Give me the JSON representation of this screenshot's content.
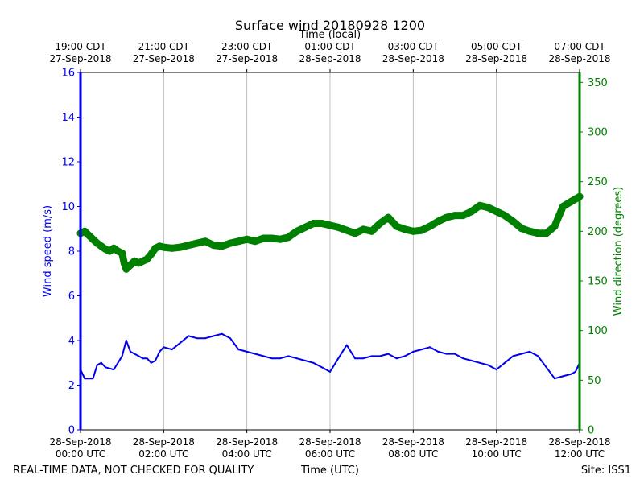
{
  "chart_data": {
    "type": "line",
    "title": "Surface wind 20180928 1200",
    "top_xlabel": "Time (local)",
    "xlabel": "Time (UTC)",
    "ylabel_left": "Wind speed (m/s)",
    "ylabel_right": "Wind direction (degrees)",
    "footer_left": "REAL-TIME DATA, NOT CHECKED FOR QUALITY",
    "footer_right": "Site: ISS1",
    "x_unit": "hours since 28-Sep-2018 00:00 UTC",
    "xlim": [
      0,
      12
    ],
    "ylim_left": [
      0,
      16
    ],
    "ylim_right": [
      0,
      360
    ],
    "grid": "vertical at bottom ticks",
    "colors": {
      "speed": "#0000ee",
      "direction": "#008000",
      "grid": "#b0b0b0",
      "axis": "#000000"
    },
    "bottom_ticks": [
      {
        "x": 0,
        "line1": "28-Sep-2018",
        "line2": "00:00 UTC"
      },
      {
        "x": 2,
        "line1": "28-Sep-2018",
        "line2": "02:00 UTC"
      },
      {
        "x": 4,
        "line1": "28-Sep-2018",
        "line2": "04:00 UTC"
      },
      {
        "x": 6,
        "line1": "28-Sep-2018",
        "line2": "06:00 UTC"
      },
      {
        "x": 8,
        "line1": "28-Sep-2018",
        "line2": "08:00 UTC"
      },
      {
        "x": 10,
        "line1": "28-Sep-2018",
        "line2": "10:00 UTC"
      },
      {
        "x": 12,
        "line1": "28-Sep-2018",
        "line2": "12:00 UTC"
      }
    ],
    "top_ticks": [
      {
        "x": 0,
        "line1": "19:00 CDT",
        "line2": "27-Sep-2018"
      },
      {
        "x": 2,
        "line1": "21:00 CDT",
        "line2": "27-Sep-2018"
      },
      {
        "x": 4,
        "line1": "23:00 CDT",
        "line2": "27-Sep-2018"
      },
      {
        "x": 6,
        "line1": "01:00 CDT",
        "line2": "28-Sep-2018"
      },
      {
        "x": 8,
        "line1": "03:00 CDT",
        "line2": "28-Sep-2018"
      },
      {
        "x": 10,
        "line1": "05:00 CDT",
        "line2": "28-Sep-2018"
      },
      {
        "x": 12,
        "line1": "07:00 CDT",
        "line2": "28-Sep-2018"
      }
    ],
    "left_ticks": [
      0,
      2,
      4,
      6,
      8,
      10,
      12,
      14,
      16
    ],
    "right_ticks": [
      0,
      50,
      100,
      150,
      200,
      250,
      300,
      350
    ],
    "series": [
      {
        "name": "Wind speed",
        "axis": "left",
        "style": "thin line",
        "x": [
          0,
          0.1,
          0.2,
          0.3,
          0.4,
          0.5,
          0.6,
          0.8,
          0.9,
          1.0,
          1.1,
          1.2,
          1.3,
          1.4,
          1.5,
          1.6,
          1.7,
          1.8,
          1.9,
          2.0,
          2.2,
          2.4,
          2.6,
          2.8,
          3.0,
          3.2,
          3.4,
          3.6,
          3.8,
          4.0,
          4.2,
          4.4,
          4.6,
          4.8,
          5.0,
          5.2,
          5.4,
          5.6,
          5.8,
          6.0,
          6.2,
          6.4,
          6.6,
          6.8,
          7.0,
          7.2,
          7.4,
          7.6,
          7.8,
          8.0,
          8.2,
          8.4,
          8.6,
          8.8,
          9.0,
          9.2,
          9.4,
          9.6,
          9.8,
          10.0,
          10.2,
          10.4,
          10.6,
          10.8,
          11.0,
          11.2,
          11.4,
          11.6,
          11.8,
          11.9,
          12.0
        ],
        "values": [
          2.7,
          2.3,
          2.3,
          2.3,
          2.9,
          3.0,
          2.8,
          2.7,
          3.0,
          3.3,
          4.0,
          3.5,
          3.4,
          3.3,
          3.2,
          3.2,
          3.0,
          3.1,
          3.5,
          3.7,
          3.6,
          3.9,
          4.2,
          4.1,
          4.1,
          4.2,
          4.3,
          4.1,
          3.6,
          3.5,
          3.4,
          3.3,
          3.2,
          3.2,
          3.3,
          3.2,
          3.1,
          3.0,
          2.8,
          2.6,
          3.2,
          3.8,
          3.2,
          3.2,
          3.3,
          3.3,
          3.4,
          3.2,
          3.3,
          3.5,
          3.6,
          3.7,
          3.5,
          3.4,
          3.4,
          3.2,
          3.1,
          3.0,
          2.9,
          2.7,
          3.0,
          3.3,
          3.4,
          3.5,
          3.3,
          2.8,
          2.3,
          2.4,
          2.5,
          2.6,
          3.0
        ]
      },
      {
        "name": "Wind direction",
        "axis": "right",
        "style": "thick line",
        "x": [
          0,
          0.1,
          0.2,
          0.3,
          0.4,
          0.5,
          0.6,
          0.7,
          0.8,
          0.9,
          1.0,
          1.05,
          1.1,
          1.2,
          1.3,
          1.4,
          1.5,
          1.6,
          1.7,
          1.8,
          1.9,
          2.0,
          2.2,
          2.4,
          2.6,
          2.8,
          3.0,
          3.2,
          3.4,
          3.6,
          3.8,
          4.0,
          4.2,
          4.4,
          4.6,
          4.8,
          5.0,
          5.2,
          5.4,
          5.6,
          5.8,
          6.0,
          6.2,
          6.4,
          6.6,
          6.8,
          7.0,
          7.2,
          7.4,
          7.6,
          7.8,
          8.0,
          8.2,
          8.4,
          8.6,
          8.8,
          9.0,
          9.2,
          9.4,
          9.6,
          9.8,
          10.0,
          10.2,
          10.4,
          10.6,
          10.8,
          11.0,
          11.2,
          11.4,
          11.6,
          11.8,
          12.0
        ],
        "values": [
          198,
          200,
          196,
          192,
          188,
          185,
          182,
          180,
          183,
          180,
          178,
          168,
          162,
          166,
          170,
          168,
          170,
          172,
          177,
          183,
          185,
          184,
          183,
          184,
          186,
          188,
          190,
          186,
          185,
          188,
          190,
          192,
          190,
          193,
          193,
          192,
          194,
          200,
          204,
          208,
          208,
          206,
          204,
          201,
          198,
          202,
          200,
          208,
          214,
          205,
          202,
          200,
          201,
          205,
          210,
          214,
          216,
          216,
          220,
          226,
          224,
          220,
          216,
          210,
          203,
          200,
          198,
          198,
          205,
          225,
          230,
          235
        ]
      }
    ]
  }
}
